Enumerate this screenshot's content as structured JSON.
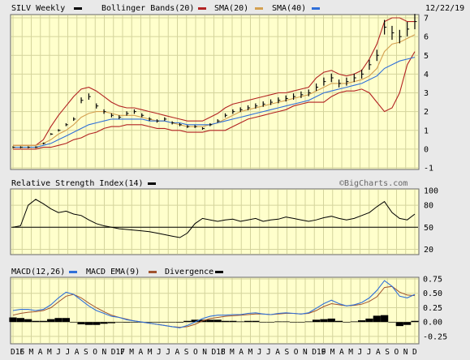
{
  "header": {
    "symbol": "SILV Weekly",
    "bb_label": "Bollinger Bands(20)",
    "sma20_label": "SMA(20)",
    "sma40_label": "SMA(40)",
    "date": "12/22/19"
  },
  "rsi_panel": {
    "title": "Relative Strength Index(14)",
    "watermark": "©BigCharts.com"
  },
  "macd_panel": {
    "title1": "MACD(12,26)",
    "title2": "MACD EMA(9)",
    "title3": "Divergence"
  },
  "colors": {
    "background": "#ffffcc",
    "grid": "#d4d49c",
    "bollinger": "#b22222",
    "sma20": "#b22222",
    "sma40": "#d4a050",
    "sma40_line": "#2f6fd9",
    "macd": "#2f6fd9",
    "signal": "#a0522d",
    "divergence": "#000000"
  },
  "chart_data": [
    {
      "type": "line",
      "panel": "price",
      "title": "SILV Weekly",
      "ylim": [
        -1,
        7
      ],
      "yticks": [
        -1,
        0,
        1,
        2,
        3,
        4,
        5,
        6,
        7
      ],
      "xlabels": [
        "D16",
        "F",
        "M",
        "A",
        "M",
        "J",
        "J",
        "A",
        "S",
        "O",
        "N",
        "D17",
        "F",
        "M",
        "A",
        "M",
        "J",
        "J",
        "A",
        "S",
        "O",
        "N",
        "D18",
        "F",
        "M",
        "A",
        "M",
        "J",
        "J",
        "A",
        "S",
        "O",
        "N",
        "D19",
        "F",
        "M",
        "A",
        "M",
        "J",
        "J",
        "A",
        "S",
        "O",
        "N",
        "D"
      ],
      "price": [
        0.1,
        0.1,
        0.1,
        0.1,
        0.3,
        0.8,
        1.0,
        1.3,
        1.6,
        2.6,
        2.8,
        2.3,
        2.0,
        1.8,
        1.7,
        1.9,
        2.0,
        1.8,
        1.6,
        1.5,
        1.6,
        1.4,
        1.3,
        1.2,
        1.2,
        1.1,
        1.3,
        1.5,
        1.8,
        2.0,
        2.1,
        2.2,
        2.3,
        2.4,
        2.5,
        2.6,
        2.7,
        2.8,
        2.9,
        3.0,
        3.3,
        3.6,
        3.8,
        3.5,
        3.6,
        3.8,
        4.0,
        4.5,
        5.0,
        6.5,
        6.2,
        6.0,
        6.4,
        6.8
      ],
      "sma20": [
        0.2,
        0.2,
        0.2,
        0.2,
        0.3,
        0.5,
        0.8,
        1.0,
        1.3,
        1.7,
        1.9,
        2.0,
        2.0,
        1.9,
        1.8,
        1.8,
        1.8,
        1.7,
        1.6,
        1.5,
        1.5,
        1.4,
        1.3,
        1.2,
        1.2,
        1.2,
        1.3,
        1.4,
        1.6,
        1.8,
        2.0,
        2.1,
        2.2,
        2.3,
        2.4,
        2.5,
        2.6,
        2.7,
        2.8,
        2.9,
        3.1,
        3.3,
        3.5,
        3.5,
        3.5,
        3.6,
        3.7,
        3.9,
        4.3,
        5.2,
        5.6,
        5.7,
        5.9,
        6.1
      ],
      "sma40": [
        0.1,
        0.1,
        0.1,
        0.1,
        0.2,
        0.3,
        0.5,
        0.7,
        0.9,
        1.1,
        1.3,
        1.4,
        1.5,
        1.6,
        1.6,
        1.6,
        1.6,
        1.6,
        1.5,
        1.5,
        1.5,
        1.4,
        1.4,
        1.3,
        1.3,
        1.3,
        1.3,
        1.4,
        1.5,
        1.6,
        1.7,
        1.8,
        1.9,
        2.0,
        2.1,
        2.2,
        2.3,
        2.4,
        2.5,
        2.6,
        2.8,
        3.0,
        3.1,
        3.2,
        3.3,
        3.4,
        3.5,
        3.7,
        3.9,
        4.3,
        4.5,
        4.7,
        4.8,
        4.9
      ],
      "bb_upper": [
        0.2,
        0.2,
        0.2,
        0.2,
        0.5,
        1.2,
        1.8,
        2.3,
        2.8,
        3.2,
        3.3,
        3.1,
        2.8,
        2.5,
        2.3,
        2.2,
        2.2,
        2.1,
        2.0,
        1.9,
        1.8,
        1.7,
        1.6,
        1.5,
        1.5,
        1.5,
        1.7,
        1.9,
        2.2,
        2.4,
        2.5,
        2.6,
        2.7,
        2.8,
        2.9,
        3.0,
        3.0,
        3.1,
        3.2,
        3.3,
        3.8,
        4.1,
        4.2,
        4.0,
        3.9,
        4.0,
        4.2,
        4.8,
        5.6,
        6.8,
        7.0,
        7.0,
        6.8,
        6.8
      ],
      "bb_lower": [
        0.0,
        0.0,
        0.0,
        0.0,
        0.1,
        0.1,
        0.2,
        0.3,
        0.5,
        0.6,
        0.8,
        0.9,
        1.1,
        1.2,
        1.2,
        1.3,
        1.3,
        1.3,
        1.2,
        1.1,
        1.1,
        1.0,
        1.0,
        0.9,
        0.9,
        0.9,
        1.0,
        1.0,
        1.0,
        1.2,
        1.4,
        1.6,
        1.7,
        1.8,
        1.9,
        2.0,
        2.1,
        2.3,
        2.4,
        2.5,
        2.5,
        2.5,
        2.8,
        3.0,
        3.1,
        3.1,
        3.2,
        3.0,
        2.5,
        2.0,
        2.2,
        3.0,
        4.5,
        5.2
      ]
    },
    {
      "type": "line",
      "panel": "rsi",
      "title": "Relative Strength Index(14)",
      "ylim": [
        15,
        100
      ],
      "yticks": [
        20,
        50,
        80,
        100
      ],
      "values": [
        50,
        52,
        80,
        88,
        82,
        75,
        70,
        72,
        68,
        66,
        60,
        55,
        52,
        50,
        48,
        47,
        46,
        45,
        44,
        42,
        40,
        38,
        36,
        42,
        55,
        62,
        60,
        58,
        60,
        61,
        58,
        60,
        62,
        58,
        60,
        61,
        64,
        62,
        60,
        58,
        60,
        63,
        65,
        62,
        60,
        62,
        66,
        70,
        78,
        85,
        70,
        62,
        60,
        68
      ]
    },
    {
      "type": "line",
      "panel": "macd",
      "title": "MACD(12,26)",
      "ylim": [
        -0.35,
        0.75
      ],
      "yticks": [
        -0.25,
        0.0,
        0.25,
        0.5,
        0.75
      ],
      "macd": [
        0.2,
        0.22,
        0.22,
        0.2,
        0.22,
        0.3,
        0.42,
        0.52,
        0.48,
        0.38,
        0.28,
        0.2,
        0.15,
        0.1,
        0.08,
        0.04,
        0.02,
        0.0,
        -0.02,
        -0.04,
        -0.06,
        -0.08,
        -0.1,
        -0.06,
        0.0,
        0.06,
        0.1,
        0.12,
        0.12,
        0.13,
        0.13,
        0.15,
        0.16,
        0.14,
        0.13,
        0.15,
        0.16,
        0.15,
        0.14,
        0.16,
        0.24,
        0.32,
        0.38,
        0.32,
        0.28,
        0.3,
        0.34,
        0.42,
        0.55,
        0.72,
        0.62,
        0.45,
        0.42,
        0.48
      ],
      "signal": [
        0.12,
        0.15,
        0.17,
        0.18,
        0.2,
        0.25,
        0.35,
        0.45,
        0.48,
        0.42,
        0.33,
        0.25,
        0.18,
        0.12,
        0.08,
        0.05,
        0.02,
        0.0,
        -0.02,
        -0.04,
        -0.06,
        -0.08,
        -0.09,
        -0.08,
        -0.04,
        0.02,
        0.06,
        0.08,
        0.1,
        0.11,
        0.12,
        0.13,
        0.14,
        0.14,
        0.13,
        0.14,
        0.15,
        0.15,
        0.14,
        0.15,
        0.2,
        0.27,
        0.32,
        0.3,
        0.28,
        0.29,
        0.31,
        0.36,
        0.44,
        0.6,
        0.62,
        0.52,
        0.47,
        0.46
      ],
      "divergence": [
        0.08,
        0.07,
        0.05,
        0.02,
        0.02,
        0.05,
        0.07,
        0.07,
        0.0,
        -0.04,
        -0.05,
        -0.05,
        -0.03,
        -0.02,
        0.0,
        -0.01,
        0.0,
        0.0,
        0.0,
        0.0,
        0.0,
        0.0,
        -0.01,
        0.02,
        0.04,
        0.04,
        0.04,
        0.04,
        0.02,
        0.02,
        0.01,
        0.02,
        0.02,
        0.0,
        0.0,
        0.01,
        0.01,
        0.0,
        0.0,
        0.01,
        0.04,
        0.05,
        0.06,
        0.02,
        0.0,
        0.01,
        0.03,
        0.06,
        0.11,
        0.12,
        0.0,
        -0.07,
        -0.05,
        0.02
      ]
    }
  ]
}
